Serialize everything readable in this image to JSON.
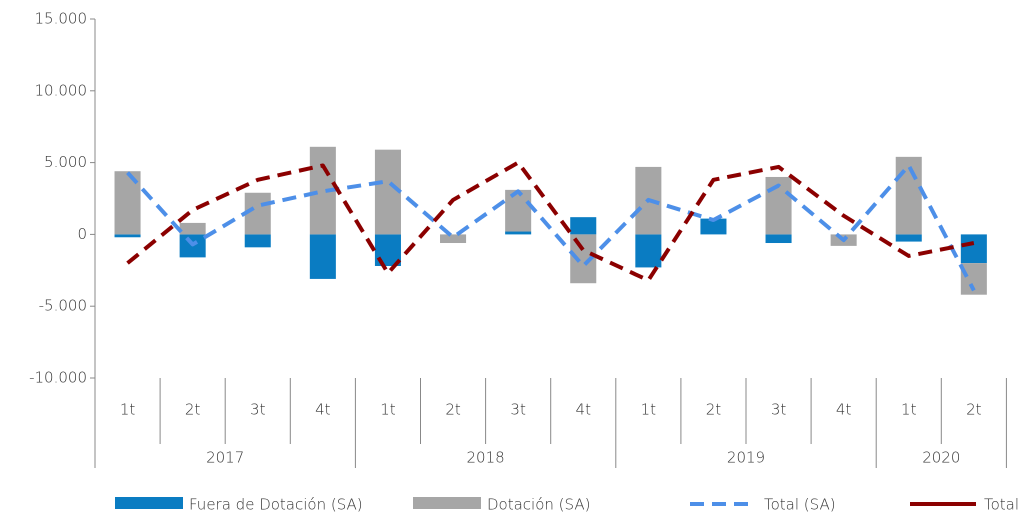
{
  "chart_data": {
    "type": "bar",
    "groups": [
      {
        "name": "2017",
        "categories": [
          "1t",
          "2t",
          "3t",
          "4t"
        ]
      },
      {
        "name": "2018",
        "categories": [
          "1t",
          "2t",
          "3t",
          "4t"
        ]
      },
      {
        "name": "2019",
        "categories": [
          "1t",
          "2t",
          "3t",
          "4t"
        ]
      },
      {
        "name": "2020",
        "categories": [
          "1t",
          "2t"
        ]
      }
    ],
    "series": [
      {
        "name": "Fuera de Dotación (SA)",
        "type": "bar",
        "color": "#0a7cc2",
        "values": [
          -200,
          -1600,
          -900,
          -3100,
          -2200,
          0,
          200,
          1200,
          -2300,
          1100,
          -600,
          0,
          -500,
          -2000
        ]
      },
      {
        "name": "Dotación (SA)",
        "type": "bar",
        "color": "#a6a6a6",
        "values": [
          4400,
          800,
          2900,
          6100,
          5900,
          -600,
          2900,
          -3400,
          4700,
          0,
          4000,
          -800,
          5400,
          -2200
        ]
      },
      {
        "name": "Total  (SA)",
        "type": "line",
        "color": "#4d8fe8",
        "values": [
          4300,
          -700,
          2000,
          3000,
          3700,
          -200,
          3000,
          -2200,
          2400,
          1000,
          3400,
          -400,
          4800,
          -3900
        ]
      },
      {
        "name": "Total",
        "type": "line",
        "color": "#8b0000",
        "values": [
          -2000,
          1700,
          3800,
          4800,
          -2700,
          2400,
          5000,
          -1100,
          -3200,
          3800,
          4700,
          1300,
          -1500,
          -600
        ]
      }
    ],
    "ylim": [
      -10000,
      15000
    ],
    "yticks": [
      {
        "value": -10000,
        "label": "-10.000"
      },
      {
        "value": -5000,
        "label": "-5.000"
      },
      0,
      {
        "value": 5000,
        "label": "5.000"
      },
      {
        "value": 10000,
        "label": "10.000"
      },
      {
        "value": 15000,
        "label": "15.000"
      }
    ]
  }
}
